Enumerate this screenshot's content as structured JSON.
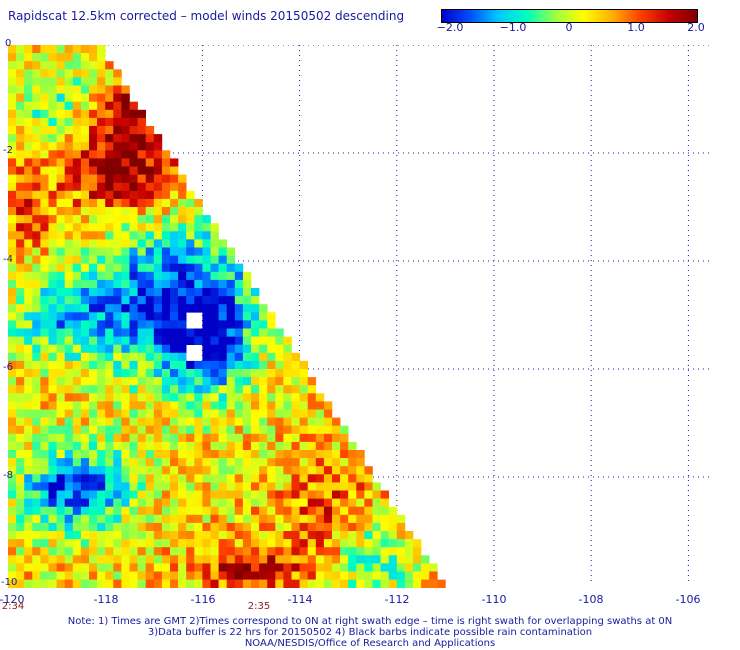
{
  "title": "Rapidscat 12.5km corrected – model winds 20150502 descending",
  "colorbar": {
    "ticks": [
      "−2.0",
      "−1.0",
      "0",
      "1.0",
      "2.0"
    ],
    "colors": [
      "#0000c8",
      "#0050ff",
      "#00c8ff",
      "#00ffc0",
      "#9bff40",
      "#ffff00",
      "#ffb000",
      "#ff4000",
      "#c80000",
      "#800000"
    ],
    "range": [
      -2.0,
      2.0
    ]
  },
  "map": {
    "lon_range": [
      -120,
      -105.5
    ],
    "lat_range": [
      -10,
      0
    ],
    "x_ticks": [
      "-120",
      "-118",
      "-116",
      "-114",
      "-112",
      "-110",
      "-108",
      "-106"
    ],
    "y_ticks": [
      "0",
      "-2",
      "-4",
      "-6",
      "-8",
      "-10"
    ],
    "time_labels": [
      "2:34",
      "2:35"
    ],
    "swath_edge": {
      "top_lon": -118.2,
      "bottom_lon": -111.1
    },
    "no_data_cells": [
      {
        "lon": -116.1,
        "lat": -5.1
      },
      {
        "lon": -116.1,
        "lat": -5.7
      }
    ]
  },
  "notes": [
    "Note: 1) Times are GMT 2)Times correspond to 0N at right swath edge – time is right swath for overlapping swaths at 0N",
    "3)Data buffer is 22 hrs for 20150502 4) Black barbs indicate possible rain contamination",
    "NOAA/NESDIS/Office of Research and Applications"
  ]
}
